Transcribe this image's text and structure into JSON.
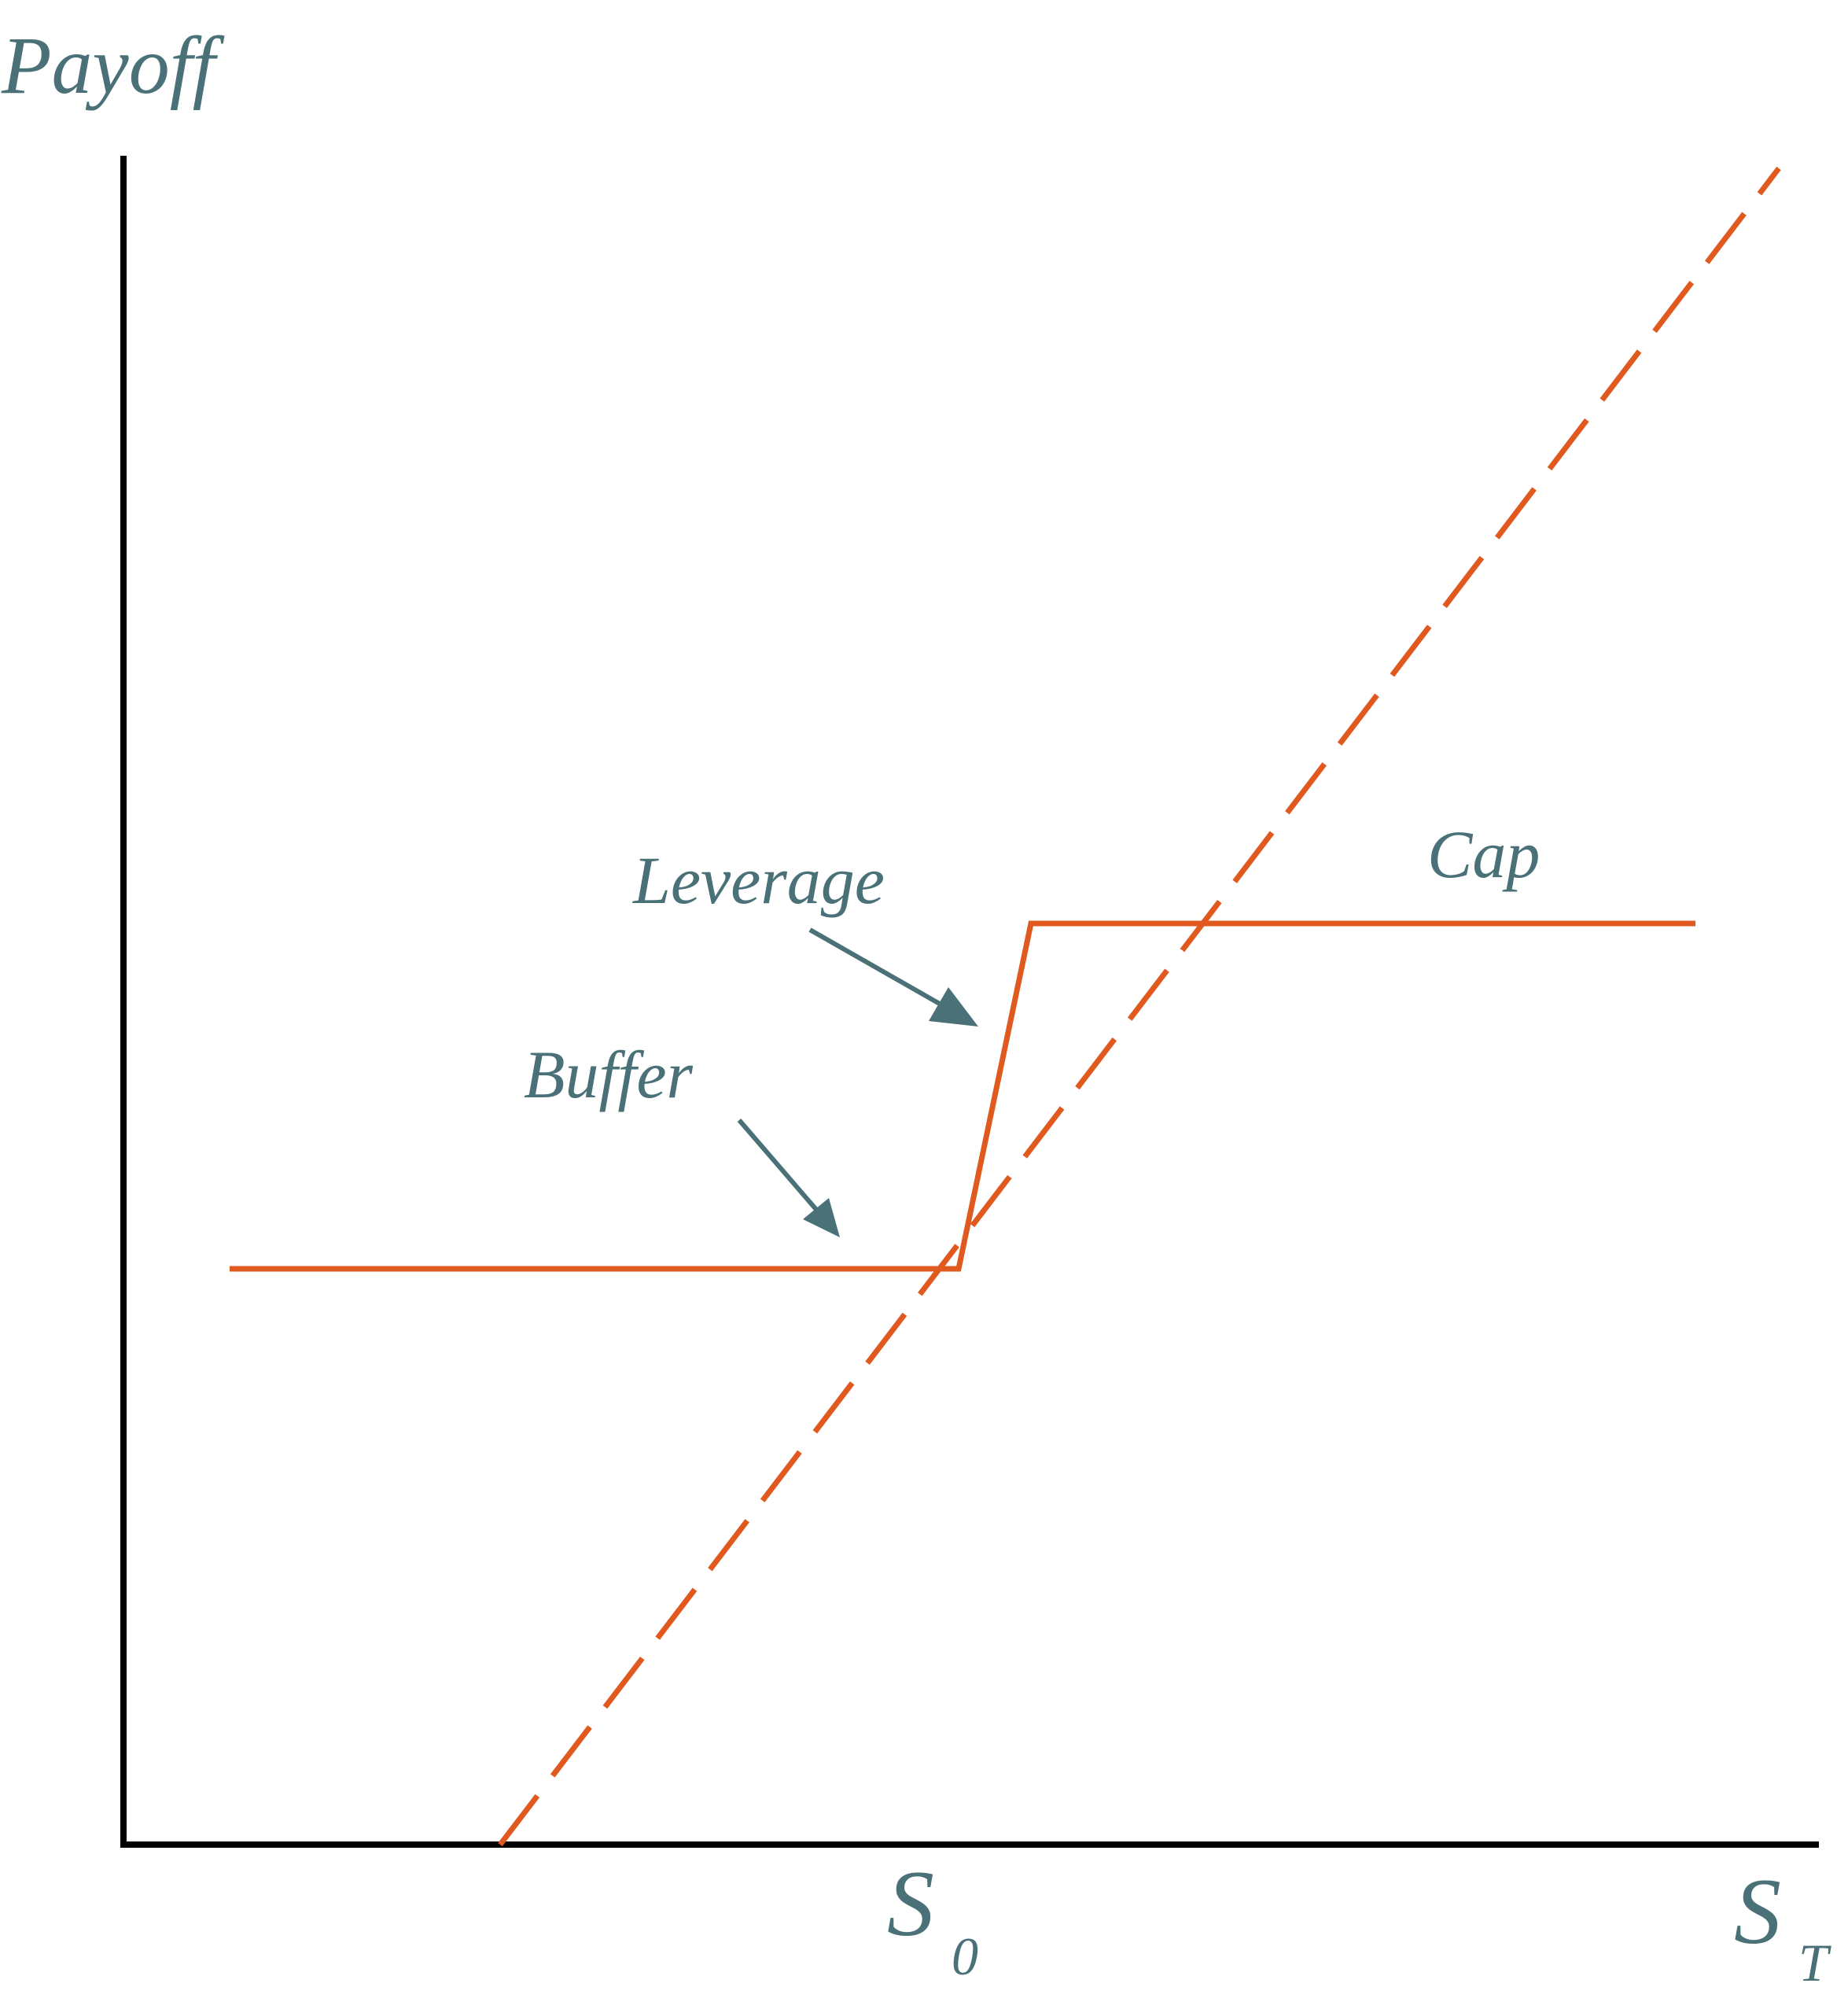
{
  "labels": {
    "y_axis": "Payoff",
    "x_axis_main": "S",
    "x_axis_sub": "T",
    "s0_main": "S",
    "s0_sub": "0",
    "leverage": "Leverage",
    "buffer": "Buffer",
    "cap": "Cap"
  },
  "colors": {
    "axis": "#000000",
    "payoff": "#e05a20",
    "text": "#4a7178"
  }
}
